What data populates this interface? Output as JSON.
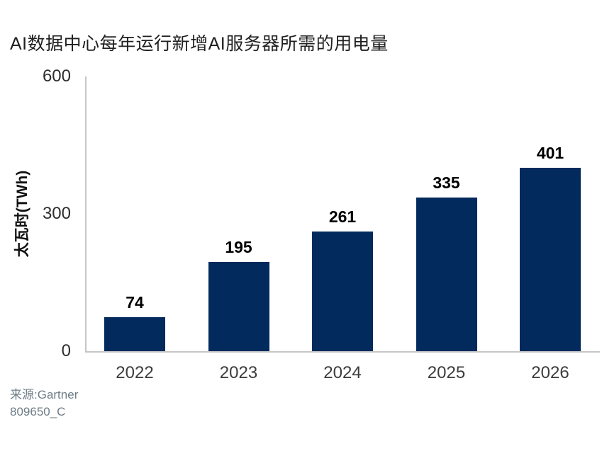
{
  "chart_data": {
    "type": "bar",
    "title": "AI数据中心每年运行新增AI服务器所需的用电量",
    "ylabel": "太瓦时(TWh)",
    "xlabel": "",
    "categories": [
      "2022",
      "2023",
      "2024",
      "2025",
      "2026"
    ],
    "values": [
      74,
      195,
      261,
      335,
      401
    ],
    "data_labels": [
      "74",
      "195",
      "261",
      "335",
      "401"
    ],
    "ylim": [
      0,
      600
    ],
    "yticks": [
      0,
      300,
      600
    ],
    "grid": false,
    "legend": "none",
    "bar_color": "#032a5c"
  },
  "source": {
    "line1": "来源:Gartner",
    "line2": "809650_C"
  },
  "colors": {
    "bar": "#032a5c",
    "axis_line": "#c6c6c6",
    "title_text": "#1f1f1f",
    "tick_text": "#2e2e2e",
    "x_tick_text": "#3c3c3c",
    "value_label_text": "#000000",
    "source_text": "#6e7c85",
    "background": "#ffffff"
  }
}
